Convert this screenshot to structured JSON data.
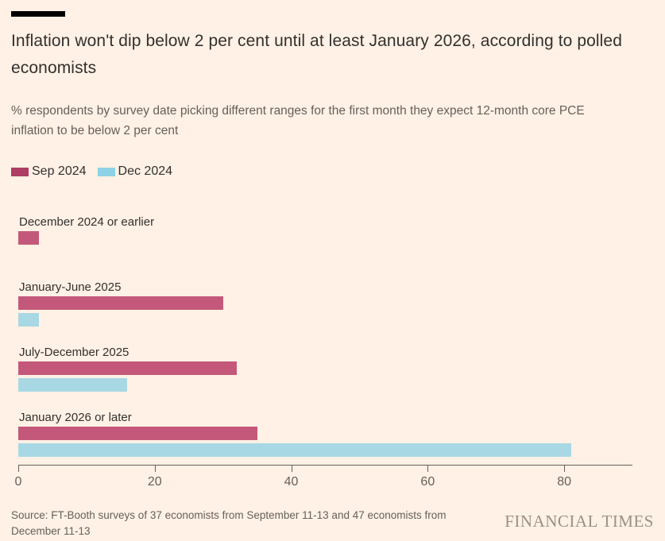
{
  "colors": {
    "background": "#fff1e5",
    "accent_bar": "#000000",
    "title_text": "#33302e",
    "muted_text": "#66605b",
    "axis": "#66605b",
    "brand_text": "#9a9186"
  },
  "header": {
    "title": "Inflation won't dip below 2 per cent until at least January 2026, according to polled economists",
    "subtitle": "% respondents by survey date picking different ranges for the first month they expect 12-month core PCE inflation to be below 2 per cent"
  },
  "chart_data": {
    "type": "bar",
    "orientation": "horizontal",
    "title": "Inflation won't dip below 2 per cent until at least January 2026, according to polled economists",
    "subtitle": "% respondents by survey date picking different ranges for the first month they expect 12-month core PCE inflation to be below 2 per cent",
    "categories": [
      "December 2024 or earlier",
      "January-June 2025",
      "July-December 2025",
      "January 2026 or later"
    ],
    "series": [
      {
        "name": "Sep 2024",
        "color": "#c4587a",
        "legend_color": "#ad3d62",
        "values": [
          3,
          30,
          32,
          35
        ]
      },
      {
        "name": "Dec 2024",
        "color": "#a8d8e4",
        "legend_color": "#8dd2e5",
        "values": [
          0,
          3,
          16,
          81
        ]
      }
    ],
    "xlim": [
      0,
      90
    ],
    "xticks": [
      0,
      20,
      40,
      60,
      80
    ],
    "grid": false,
    "legend_position": "top-left",
    "xlabel": "",
    "ylabel": ""
  },
  "footer": {
    "source": "Source: FT-Booth surveys of 37 economists from September 11-13 and 47 economists from December 11-13",
    "brand": "FINANCIAL TIMES"
  }
}
